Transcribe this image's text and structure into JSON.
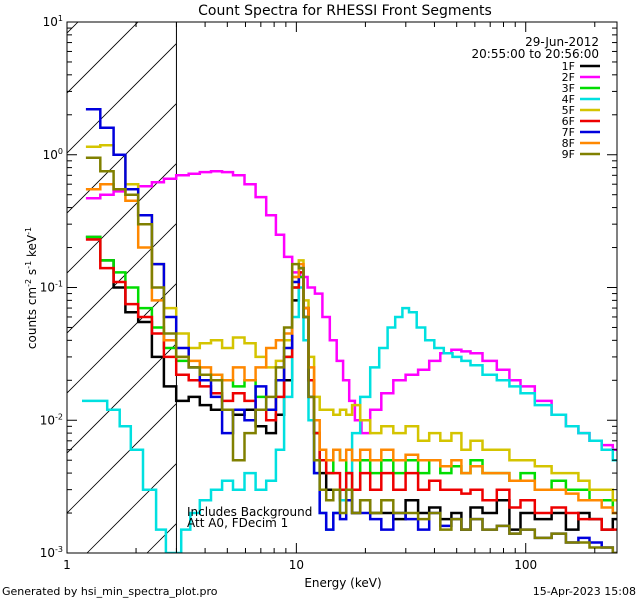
{
  "chart_data": {
    "type": "line",
    "title": "Count Spectra for RHESSI Front Segments",
    "xlabel": "Energy (keV)",
    "ylabel_base": "counts cm",
    "ylabel_sup1": "-2",
    "ylabel_mid": " s",
    "ylabel_sup2": "-1",
    "ylabel_end": " keV",
    "ylabel_sup3": "-1",
    "x_scale": "log",
    "y_scale": "log",
    "xlim": [
      1,
      250
    ],
    "ylim": [
      0.001,
      10
    ],
    "x_ticks": [
      {
        "value": 1,
        "label": "1"
      },
      {
        "value": 10,
        "label": "10"
      },
      {
        "value": 100,
        "label": "100"
      }
    ],
    "y_ticks": [
      {
        "value": 0.001,
        "base": "10",
        "exp": "-3"
      },
      {
        "value": 0.01,
        "base": "10",
        "exp": "-2"
      },
      {
        "value": 0.1,
        "base": "10",
        "exp": "-1"
      },
      {
        "value": 1,
        "base": "10",
        "exp": "0"
      },
      {
        "value": 10,
        "base": "10",
        "exp": "1"
      }
    ],
    "hatched_region_xmax": 3,
    "date": "29-Jun-2012",
    "time_range": "20:55:00 to 20:56:00",
    "annotation_line1": "Includes Background",
    "annotation_line2": "Att A0, FDecim 1",
    "footer_left": "Generated by hsi_min_spectra_plot.pro",
    "footer_right": "15-Apr-2023 15:08",
    "series": [
      {
        "name": "1F",
        "color": "#000000",
        "x": [
          1.3,
          1.5,
          1.7,
          1.9,
          2.2,
          2.5,
          2.8,
          3.2,
          3.6,
          4.0,
          4.5,
          5.0,
          5.6,
          6.3,
          7.0,
          7.8,
          8.5,
          9.2,
          10.0,
          10.5,
          11.0,
          11.6,
          12.3,
          13,
          14,
          15,
          16,
          17,
          18,
          20,
          22,
          25,
          28,
          32,
          36,
          40,
          45,
          50,
          55,
          60,
          70,
          80,
          90,
          100,
          120,
          140,
          160,
          180,
          200,
          230,
          250
        ],
        "y": [
          0.24,
          0.16,
          0.1,
          0.065,
          0.055,
          0.03,
          0.018,
          0.014,
          0.015,
          0.013,
          0.012,
          0.012,
          0.011,
          0.012,
          0.009,
          0.008,
          0.011,
          0.02,
          0.08,
          0.14,
          0.07,
          0.02,
          0.008,
          0.004,
          0.003,
          0.003,
          0.0025,
          0.003,
          0.002,
          0.0025,
          0.002,
          0.002,
          0.0018,
          0.0025,
          0.002,
          0.0022,
          0.0018,
          0.002,
          0.0015,
          0.0022,
          0.002,
          0.0025,
          0.0015,
          0.002,
          0.0018,
          0.002,
          0.0015,
          0.002,
          0.0018,
          0.0015,
          0.0018
        ]
      },
      {
        "name": "2F",
        "color": "#ff00ff",
        "x": [
          1.3,
          1.5,
          1.7,
          1.9,
          2.2,
          2.5,
          2.8,
          3.2,
          3.6,
          4.0,
          4.5,
          5.0,
          5.6,
          6.3,
          7.0,
          7.8,
          8.5,
          9.2,
          10.0,
          10.8,
          11.6,
          12.5,
          13.5,
          14.5,
          15.5,
          16.5,
          17.5,
          18.5,
          20,
          22,
          25,
          28,
          32,
          36,
          40,
          45,
          50,
          55,
          60,
          70,
          80,
          90,
          100,
          120,
          140,
          160,
          180,
          200,
          230,
          250
        ],
        "y": [
          0.47,
          0.5,
          0.53,
          0.55,
          0.58,
          0.62,
          0.66,
          0.7,
          0.72,
          0.74,
          0.75,
          0.74,
          0.7,
          0.6,
          0.48,
          0.35,
          0.25,
          0.17,
          0.13,
          0.12,
          0.1,
          0.09,
          0.06,
          0.04,
          0.028,
          0.02,
          0.014,
          0.01,
          0.008,
          0.012,
          0.016,
          0.02,
          0.022,
          0.024,
          0.028,
          0.032,
          0.034,
          0.033,
          0.032,
          0.028,
          0.024,
          0.02,
          0.018,
          0.014,
          0.011,
          0.009,
          0.008,
          0.007,
          0.0065,
          0.006
        ]
      },
      {
        "name": "3F",
        "color": "#00dd00",
        "x": [
          1.3,
          1.5,
          1.7,
          1.9,
          2.2,
          2.5,
          2.8,
          3.2,
          3.6,
          4.0,
          4.5,
          5.0,
          5.6,
          6.3,
          7.0,
          7.8,
          8.5,
          9.2,
          10.0,
          10.5,
          11.0,
          11.6,
          12.3,
          13,
          14,
          15,
          16,
          17,
          18,
          20,
          22,
          25,
          28,
          32,
          36,
          40,
          45,
          50,
          55,
          60,
          70,
          80,
          90,
          100,
          120,
          140,
          160,
          180,
          200,
          230,
          250
        ],
        "y": [
          0.24,
          0.16,
          0.13,
          0.1,
          0.07,
          0.05,
          0.035,
          0.028,
          0.025,
          0.022,
          0.022,
          0.02,
          0.018,
          0.02,
          0.015,
          0.012,
          0.02,
          0.03,
          0.1,
          0.12,
          0.06,
          0.02,
          0.008,
          0.005,
          0.004,
          0.006,
          0.005,
          0.004,
          0.003,
          0.005,
          0.004,
          0.005,
          0.004,
          0.005,
          0.004,
          0.005,
          0.004,
          0.0045,
          0.004,
          0.005,
          0.004,
          0.004,
          0.0035,
          0.004,
          0.003,
          0.0035,
          0.003,
          0.003,
          0.0025,
          0.0025,
          0.002
        ]
      },
      {
        "name": "4F",
        "color": "#00e0e0",
        "x": [
          1.25,
          1.4,
          1.6,
          1.8,
          2.0,
          2.3,
          2.6,
          2.8,
          3.0,
          3.3,
          3.6,
          4.0,
          4.5,
          5.0,
          5.6,
          6.3,
          7.0,
          7.8,
          8.5,
          9.2,
          10.0,
          10.5,
          11.0,
          11.6,
          12.3,
          13,
          14,
          15,
          16,
          17,
          18,
          20,
          22,
          24,
          26,
          28,
          30,
          32,
          35,
          38,
          42,
          46,
          50,
          55,
          60,
          70,
          80,
          90,
          100,
          120,
          140,
          160,
          180,
          200,
          230,
          250
        ],
        "y": [
          0.014,
          0.014,
          0.012,
          0.009,
          0.006,
          0.003,
          0.0015,
          0.001,
          0.001,
          0.0015,
          0.002,
          0.0025,
          0.003,
          0.0035,
          0.003,
          0.004,
          0.003,
          0.0035,
          0.006,
          0.015,
          0.06,
          0.1,
          0.04,
          0.01,
          0.004,
          0.002,
          0.0015,
          0.002,
          0.0025,
          0.004,
          0.008,
          0.015,
          0.025,
          0.035,
          0.05,
          0.06,
          0.07,
          0.065,
          0.05,
          0.04,
          0.035,
          0.032,
          0.03,
          0.028,
          0.026,
          0.022,
          0.02,
          0.018,
          0.016,
          0.013,
          0.011,
          0.009,
          0.008,
          0.007,
          0.006,
          0.005
        ]
      },
      {
        "name": "5F",
        "color": "#d4c400",
        "x": [
          1.3,
          1.5,
          1.7,
          1.9,
          2.2,
          2.5,
          2.8,
          3.2,
          3.6,
          4.0,
          4.5,
          5.0,
          5.6,
          6.3,
          7.0,
          7.8,
          8.5,
          9.2,
          10.0,
          10.5,
          11.0,
          11.6,
          12.3,
          13,
          14,
          15,
          16,
          17,
          18,
          20,
          22,
          25,
          28,
          32,
          36,
          40,
          45,
          50,
          55,
          60,
          70,
          80,
          90,
          100,
          120,
          140,
          160,
          180,
          200,
          230,
          250
        ],
        "y": [
          1.15,
          1.18,
          1.0,
          0.6,
          0.35,
          0.15,
          0.07,
          0.045,
          0.035,
          0.038,
          0.04,
          0.035,
          0.042,
          0.038,
          0.03,
          0.025,
          0.028,
          0.04,
          0.12,
          0.16,
          0.08,
          0.03,
          0.015,
          0.012,
          0.012,
          0.011,
          0.012,
          0.011,
          0.013,
          0.01,
          0.008,
          0.009,
          0.008,
          0.009,
          0.007,
          0.008,
          0.007,
          0.008,
          0.006,
          0.007,
          0.006,
          0.006,
          0.005,
          0.005,
          0.0045,
          0.004,
          0.004,
          0.0035,
          0.003,
          0.003,
          0.0025
        ]
      },
      {
        "name": "6F",
        "color": "#ee0000",
        "x": [
          1.3,
          1.5,
          1.7,
          1.9,
          2.2,
          2.5,
          2.8,
          3.2,
          3.6,
          4.0,
          4.5,
          5.0,
          5.6,
          6.3,
          7.0,
          7.8,
          8.5,
          9.2,
          10.0,
          10.5,
          11.0,
          11.6,
          12.3,
          13,
          14,
          15,
          16,
          17,
          18,
          20,
          22,
          25,
          28,
          32,
          36,
          40,
          45,
          50,
          55,
          60,
          70,
          80,
          90,
          100,
          120,
          140,
          160,
          180,
          200,
          230,
          250
        ],
        "y": [
          0.23,
          0.14,
          0.11,
          0.075,
          0.06,
          0.045,
          0.03,
          0.022,
          0.02,
          0.018,
          0.016,
          0.014,
          0.016,
          0.014,
          0.012,
          0.01,
          0.015,
          0.03,
          0.1,
          0.13,
          0.07,
          0.02,
          0.008,
          0.005,
          0.004,
          0.004,
          0.003,
          0.004,
          0.003,
          0.004,
          0.003,
          0.004,
          0.003,
          0.004,
          0.003,
          0.0035,
          0.003,
          0.003,
          0.0028,
          0.003,
          0.0025,
          0.003,
          0.0022,
          0.0025,
          0.002,
          0.0022,
          0.002,
          0.0018,
          0.0018,
          0.0015,
          0.0015
        ]
      },
      {
        "name": "7F",
        "color": "#0000dd",
        "x": [
          1.3,
          1.5,
          1.7,
          1.9,
          2.2,
          2.5,
          2.8,
          3.2,
          3.6,
          4.0,
          4.5,
          5.0,
          5.6,
          6.3,
          7.0,
          7.8,
          8.5,
          9.2,
          10.0,
          10.5,
          11.0,
          11.6,
          12.3,
          13,
          14,
          15,
          16,
          17,
          18,
          20,
          22,
          25,
          28,
          32,
          36,
          40,
          45,
          50,
          55,
          60,
          70,
          80,
          90,
          100,
          120,
          140,
          160,
          180,
          200,
          230,
          250
        ],
        "y": [
          2.2,
          1.6,
          1.0,
          0.55,
          0.35,
          0.15,
          0.06,
          0.035,
          0.025,
          0.02,
          0.015,
          0.008,
          0.012,
          0.01,
          0.018,
          0.012,
          0.02,
          0.035,
          0.11,
          0.14,
          0.06,
          0.015,
          0.004,
          0.002,
          0.0015,
          0.002,
          0.0018,
          0.0025,
          0.002,
          0.002,
          0.0018,
          0.0015,
          0.002,
          0.0018,
          0.0015,
          0.002,
          0.0016,
          0.0018,
          0.0015,
          0.0018,
          0.0015,
          0.0016,
          0.0014,
          0.0015,
          0.0013,
          0.0014,
          0.0012,
          0.0013,
          0.0012,
          0.0011,
          0.001
        ]
      },
      {
        "name": "8F",
        "color": "#ff8800",
        "x": [
          1.3,
          1.5,
          1.7,
          1.9,
          2.2,
          2.5,
          2.8,
          3.2,
          3.6,
          4.0,
          4.5,
          5.0,
          5.6,
          6.3,
          7.0,
          7.8,
          8.5,
          9.2,
          10.0,
          10.5,
          11.0,
          11.6,
          12.3,
          13,
          14,
          15,
          16,
          17,
          18,
          20,
          22,
          25,
          28,
          32,
          36,
          40,
          45,
          50,
          55,
          60,
          70,
          80,
          90,
          100,
          120,
          140,
          160,
          180,
          200,
          230,
          250
        ],
        "y": [
          0.55,
          0.6,
          0.55,
          0.45,
          0.2,
          0.08,
          0.04,
          0.03,
          0.028,
          0.025,
          0.022,
          0.02,
          0.025,
          0.02,
          0.025,
          0.035,
          0.04,
          0.045,
          0.12,
          0.15,
          0.07,
          0.025,
          0.01,
          0.006,
          0.005,
          0.006,
          0.005,
          0.006,
          0.005,
          0.006,
          0.005,
          0.006,
          0.005,
          0.0055,
          0.005,
          0.005,
          0.0045,
          0.005,
          0.004,
          0.0045,
          0.004,
          0.004,
          0.0035,
          0.0035,
          0.003,
          0.003,
          0.0028,
          0.0025,
          0.0025,
          0.0022,
          0.002
        ]
      },
      {
        "name": "9F",
        "color": "#808000",
        "x": [
          1.3,
          1.5,
          1.7,
          1.9,
          2.2,
          2.5,
          2.8,
          3.2,
          3.6,
          4.0,
          4.5,
          5.0,
          5.6,
          6.3,
          7.0,
          7.8,
          8.5,
          9.2,
          10.0,
          10.5,
          11.0,
          11.6,
          12.3,
          13,
          14,
          15,
          16,
          17,
          18,
          20,
          22,
          25,
          28,
          32,
          36,
          40,
          45,
          50,
          55,
          60,
          70,
          80,
          90,
          100,
          120,
          140,
          160,
          180,
          200,
          230,
          250
        ],
        "y": [
          0.95,
          0.75,
          0.55,
          0.5,
          0.3,
          0.1,
          0.045,
          0.03,
          0.025,
          0.022,
          0.02,
          0.012,
          0.005,
          0.008,
          0.012,
          0.015,
          0.025,
          0.05,
          0.15,
          0.14,
          0.06,
          0.015,
          0.005,
          0.003,
          0.0025,
          0.003,
          0.002,
          0.003,
          0.002,
          0.0025,
          0.002,
          0.0025,
          0.002,
          0.002,
          0.0018,
          0.002,
          0.0015,
          0.0018,
          0.0015,
          0.0018,
          0.0015,
          0.0016,
          0.0014,
          0.0015,
          0.0013,
          0.0014,
          0.0012,
          0.0012,
          0.0011,
          0.0011,
          0.001
        ]
      }
    ]
  }
}
